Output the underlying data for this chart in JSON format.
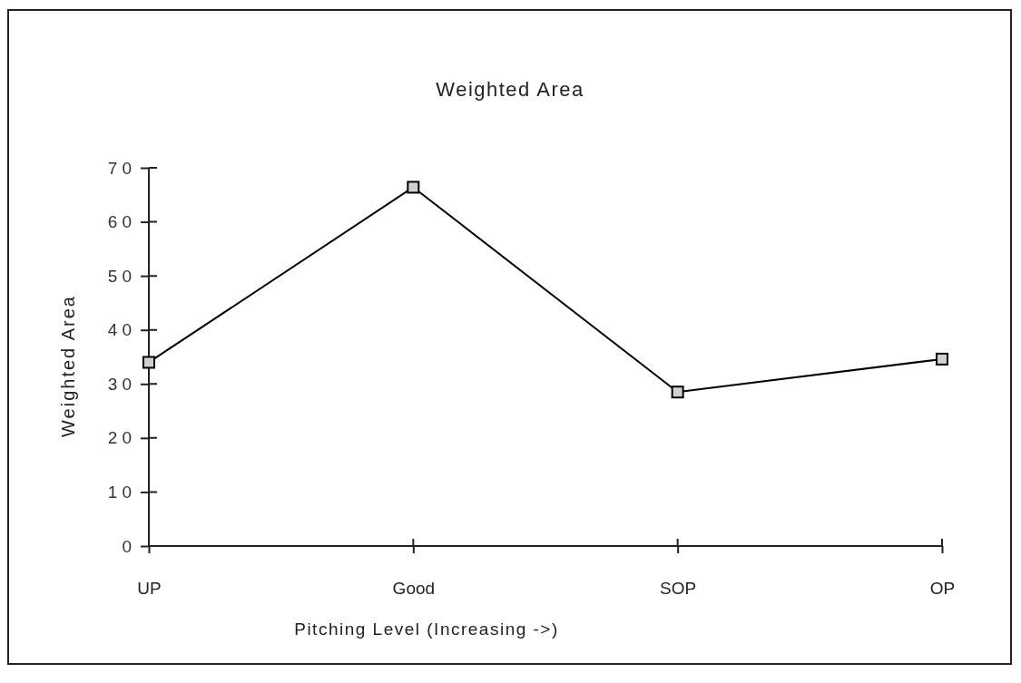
{
  "chart_data": {
    "type": "line",
    "title": "Weighted Area",
    "xlabel": "Pitching Level (Increasing ->)",
    "ylabel": "Weighted Area",
    "categories": [
      "UP",
      "Good",
      "SOP",
      "OP"
    ],
    "series": [
      {
        "color": "#000000",
        "values": [
          34,
          66.4,
          28.5,
          34.6
        ]
      }
    ],
    "ylim": [
      0,
      70
    ],
    "yticks": [
      0,
      10,
      20,
      30,
      40,
      50,
      60,
      70
    ],
    "marker": "square",
    "line_style": "solid"
  }
}
